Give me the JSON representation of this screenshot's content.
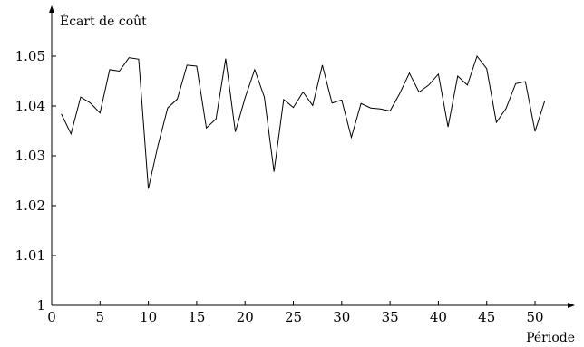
{
  "chart_data": {
    "type": "line",
    "ylabel": "Écart de coût",
    "xlabel": "Période",
    "xlim": [
      0,
      53
    ],
    "ylim": [
      1.0,
      1.055
    ],
    "xticks": [
      0,
      5,
      10,
      15,
      20,
      25,
      30,
      35,
      40,
      45,
      50
    ],
    "yticks": [
      1,
      1.01,
      1.02,
      1.03,
      1.04,
      1.05
    ],
    "ytick_labels": [
      "1",
      "1.01",
      "1.02",
      "1.03",
      "1.04",
      "1.05"
    ],
    "grid": false,
    "series": [
      {
        "color": "#000000",
        "x": [
          1,
          2,
          3,
          4,
          5,
          6,
          7,
          8,
          9,
          10,
          11,
          12,
          13,
          14,
          15,
          16,
          17,
          18,
          19,
          20,
          21,
          22,
          23,
          24,
          25,
          26,
          27,
          28,
          29,
          30,
          31,
          32,
          33,
          34,
          35,
          36,
          37,
          38,
          39,
          40,
          41,
          42,
          43,
          44,
          45,
          46,
          47,
          48,
          49,
          50,
          51
        ],
        "y": [
          1.0384,
          1.0344,
          1.0418,
          1.0406,
          1.0386,
          1.0473,
          1.047,
          1.0497,
          1.0494,
          1.0234,
          1.0321,
          1.0396,
          1.0414,
          1.0482,
          1.048,
          1.0356,
          1.0374,
          1.0495,
          1.0348,
          1.0416,
          1.0473,
          1.0418,
          1.0268,
          1.0413,
          1.0397,
          1.0428,
          1.0401,
          1.0482,
          1.0406,
          1.0412,
          1.0337,
          1.0405,
          1.0396,
          1.0394,
          1.039,
          1.0425,
          1.0466,
          1.0428,
          1.0442,
          1.0464,
          1.0358,
          1.046,
          1.0442,
          1.05,
          1.0475,
          1.0367,
          1.0395,
          1.0445,
          1.0449,
          1.0349,
          1.041
        ]
      }
    ]
  }
}
